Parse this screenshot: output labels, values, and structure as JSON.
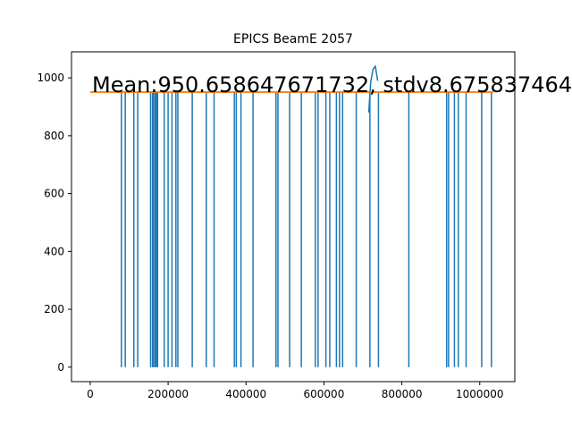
{
  "chart_data": {
    "type": "line",
    "title": "EPICS BeamE 2057",
    "xlabel": "",
    "ylabel": "",
    "xlim": [
      -48000,
      1090000
    ],
    "ylim": [
      -50,
      1090
    ],
    "x_ticks": [
      0,
      200000,
      400000,
      600000,
      800000,
      1000000
    ],
    "y_ticks": [
      0,
      200,
      400,
      600,
      800,
      1000
    ],
    "x_tick_labels": [
      "0",
      "200000",
      "400000",
      "600000",
      "800000",
      "1000000"
    ],
    "y_tick_labels": [
      "0",
      "200",
      "400",
      "600",
      "800",
      "1000"
    ],
    "annotation": "Mean:950.658647671732, stdv8.675837464",
    "grid": false,
    "legend": "none",
    "series": [
      {
        "color": "#1f77b4",
        "baseline": 951,
        "dropouts": [
          80000,
          90000,
          112000,
          122000,
          155000,
          160000,
          163000,
          167000,
          170000,
          173000,
          190000,
          200000,
          210000,
          220000,
          225000,
          262000,
          298000,
          318000,
          370000,
          375000,
          387000,
          418000,
          477000,
          482000,
          512000,
          542000,
          578000,
          585000,
          605000,
          615000,
          632000,
          640000,
          648000,
          683000,
          718000,
          740000,
          818000,
          915000,
          920000,
          935000,
          945000,
          965000,
          1005000,
          1030000
        ],
        "spike": {
          "x": [
            715000,
            720000,
            726000,
            732000,
            738000
          ],
          "y": [
            880,
            985,
            1030,
            1040,
            990
          ]
        }
      },
      {
        "color": "#ff7f0e",
        "x": [
          0,
          1035000
        ],
        "y": [
          950.66,
          950.66
        ]
      }
    ]
  }
}
